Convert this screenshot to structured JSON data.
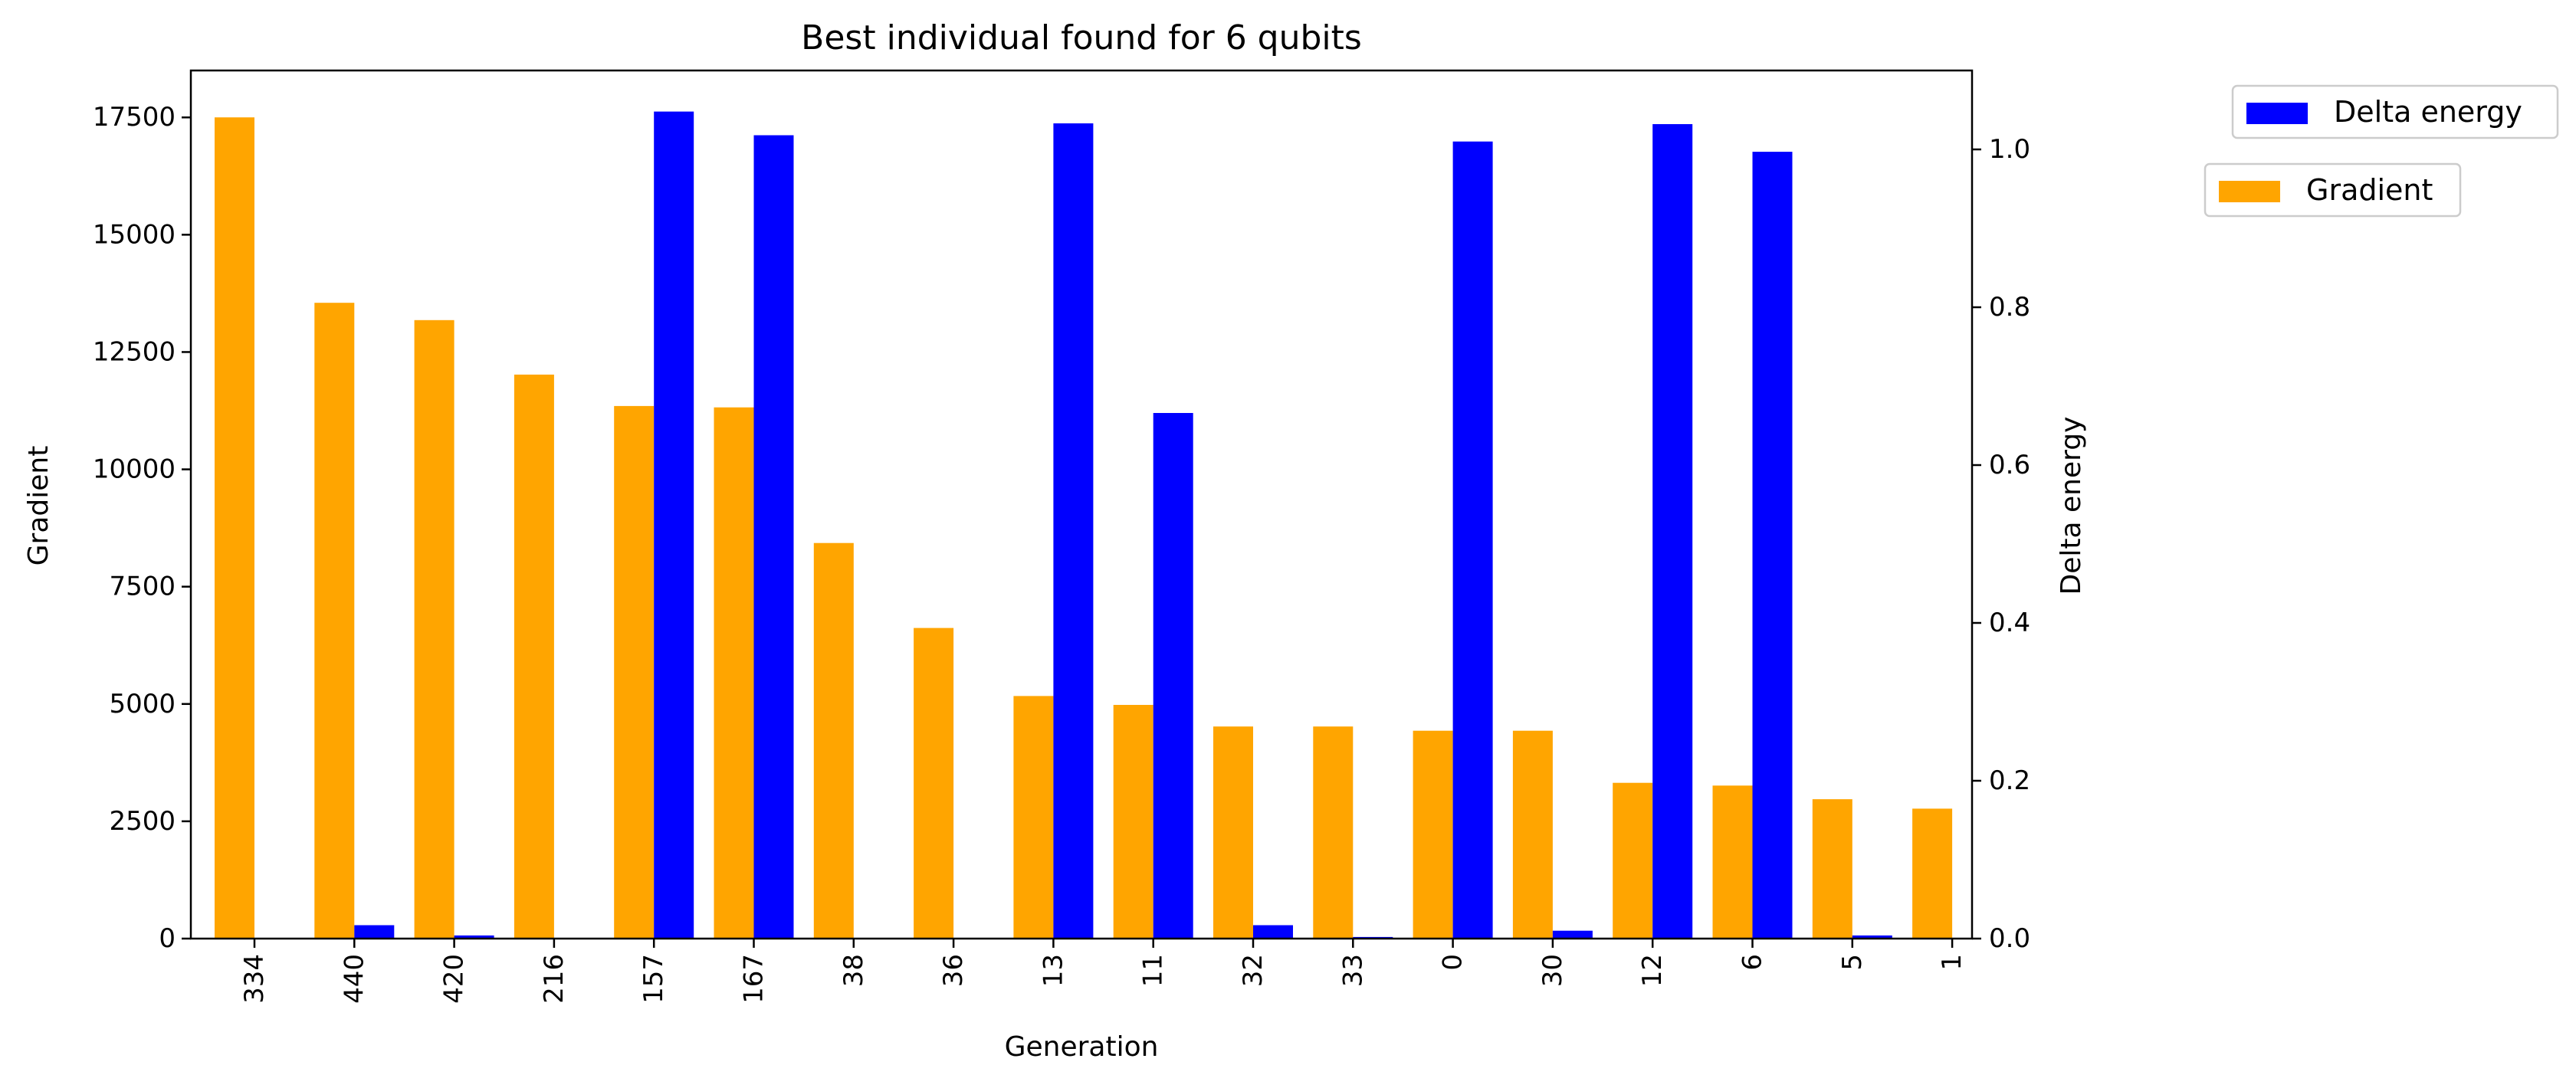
{
  "chart_data": {
    "type": "bar",
    "title": "Best individual found for 6 qubits",
    "xlabel": "Generation",
    "ylabel_left": "Gradient",
    "ylabel_right": "Delta energy",
    "categories": [
      "334",
      "440",
      "420",
      "216",
      "157",
      "167",
      "38",
      "36",
      "13",
      "11",
      "32",
      "33",
      "0",
      "30",
      "12",
      "6",
      "5",
      "1"
    ],
    "series": [
      {
        "name": "Gradient",
        "axis": "left",
        "color": "#FFA500",
        "values": [
          17500,
          13550,
          13180,
          12020,
          11350,
          11320,
          8430,
          6620,
          5170,
          4980,
          4520,
          4520,
          4430,
          4430,
          3320,
          3260,
          2970,
          2770
        ]
      },
      {
        "name": "Delta energy",
        "axis": "right",
        "color": "#0000FF",
        "values": [
          0.0,
          0.017,
          0.004,
          0.0,
          1.048,
          1.018,
          0.0,
          0.0,
          1.033,
          0.666,
          0.017,
          0.002,
          1.01,
          0.01,
          1.032,
          0.997,
          0.004,
          0.0
        ]
      }
    ],
    "ylim_left": [
      0,
      18500
    ],
    "ylim_right": [
      0,
      1.1
    ],
    "yticks_left": [
      "0",
      "2500",
      "5000",
      "7500",
      "10000",
      "12500",
      "15000",
      "17500"
    ],
    "yticks_right": [
      "0.0",
      "0.2",
      "0.4",
      "0.6",
      "0.8",
      "1.0"
    ],
    "grid": false,
    "legends": [
      {
        "label": "Delta energy",
        "color": "#0000FF",
        "placement": "outside-top-right"
      },
      {
        "label": "Gradient",
        "color": "#FFA500",
        "placement": "outside-top-right-below"
      }
    ]
  }
}
